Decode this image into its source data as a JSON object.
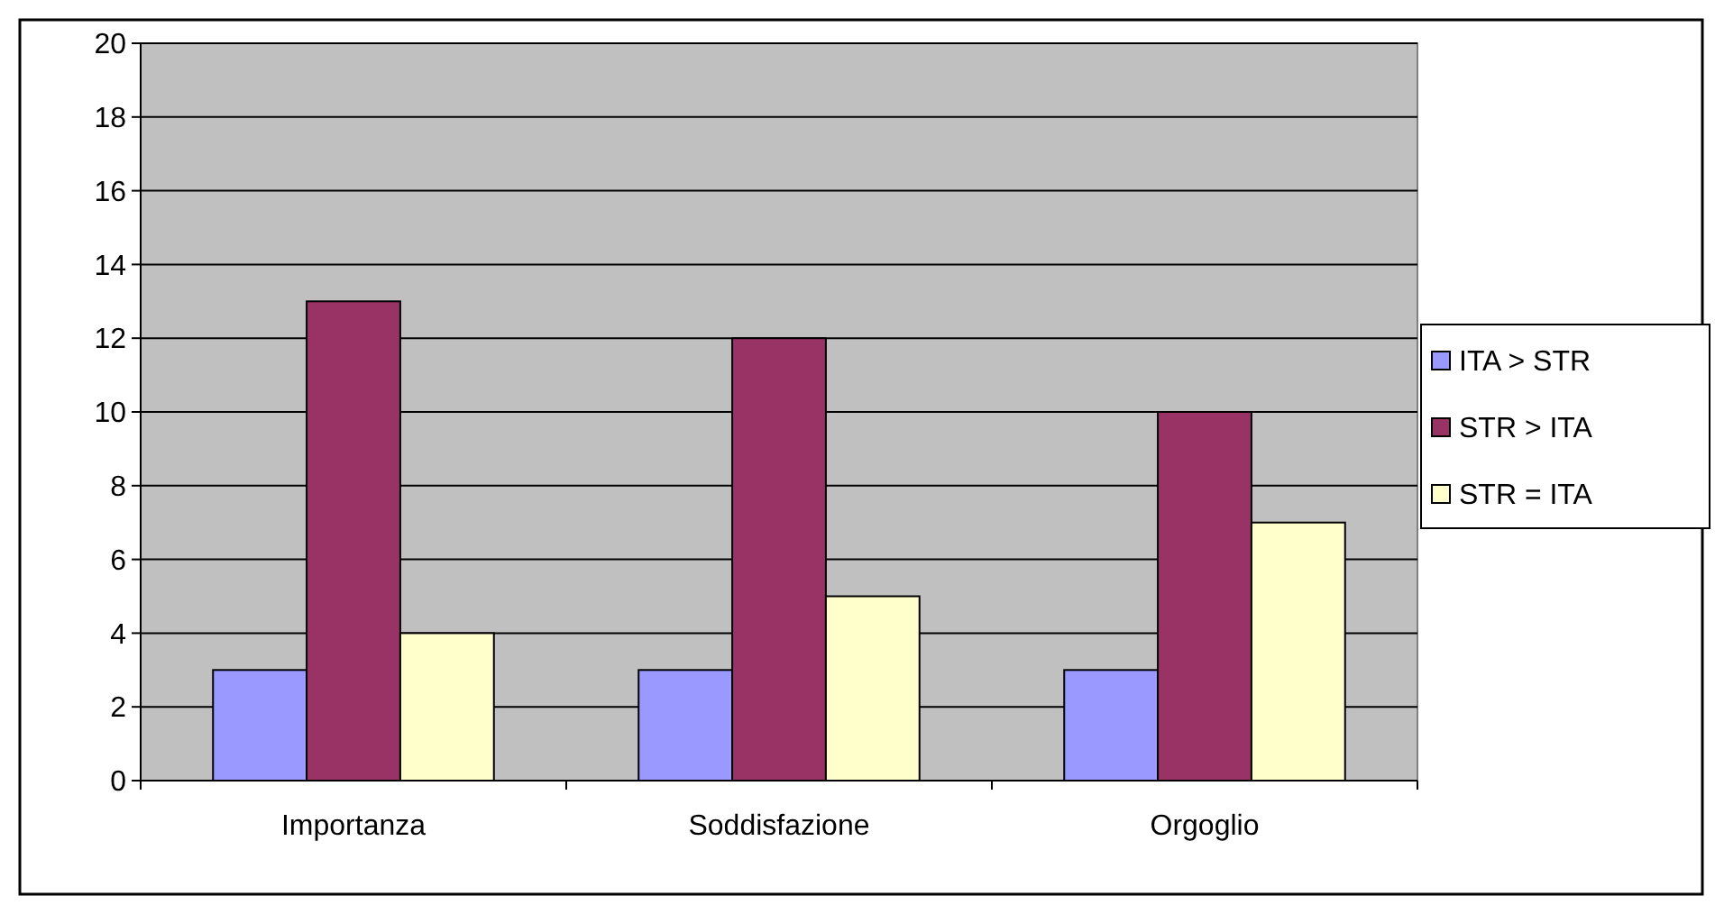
{
  "chart_data": {
    "type": "bar",
    "categories": [
      "Importanza",
      "Soddisfazione",
      "Orgoglio"
    ],
    "series": [
      {
        "name": "ITA > STR",
        "color": "#9999ff",
        "values": [
          3,
          3,
          3
        ]
      },
      {
        "name": "STR > ITA",
        "color": "#993366",
        "values": [
          13,
          12,
          10
        ]
      },
      {
        "name": "STR = ITA",
        "color": "#ffffcc",
        "values": [
          4,
          5,
          7
        ]
      }
    ],
    "ylim": [
      0,
      20
    ],
    "yticks": [
      0,
      2,
      4,
      6,
      8,
      10,
      12,
      14,
      16,
      18,
      20
    ],
    "grid": "y",
    "legend": "right"
  }
}
